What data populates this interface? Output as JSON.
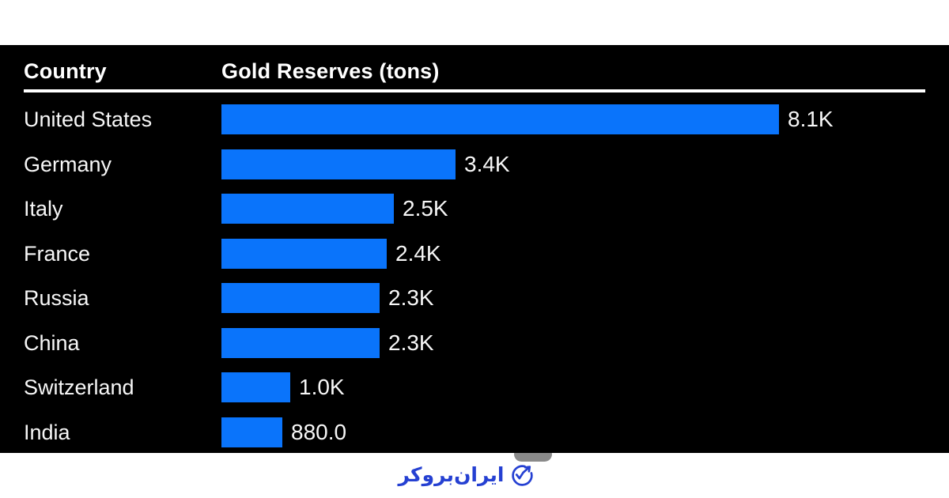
{
  "table": {
    "header_country": "Country",
    "header_value": "Gold Reserves (tons)"
  },
  "chart_data": {
    "type": "bar",
    "orientation": "horizontal",
    "title": "",
    "category_column": "Country",
    "value_column": "Gold Reserves (tons)",
    "categories": [
      "United States",
      "Germany",
      "Italy",
      "France",
      "Russia",
      "China",
      "Switzerland",
      "India"
    ],
    "values": [
      8100,
      3400,
      2500,
      2400,
      2300,
      2300,
      1000,
      880
    ],
    "value_labels": [
      "8.1K",
      "3.4K",
      "2.5K",
      "2.4K",
      "2.3K",
      "2.3K",
      "1.0K",
      "880.0"
    ],
    "unit": "tons",
    "max_value": 8100,
    "legend": "none",
    "grid": "off",
    "bar_color": "#0a74fb",
    "panel_background": "#000000",
    "text_color": "#ffffff"
  },
  "footer": {
    "logo_text": "ایران‌بروکر",
    "logo_icon": "trending-up-circle-icon",
    "logo_color": "#2540d2"
  }
}
